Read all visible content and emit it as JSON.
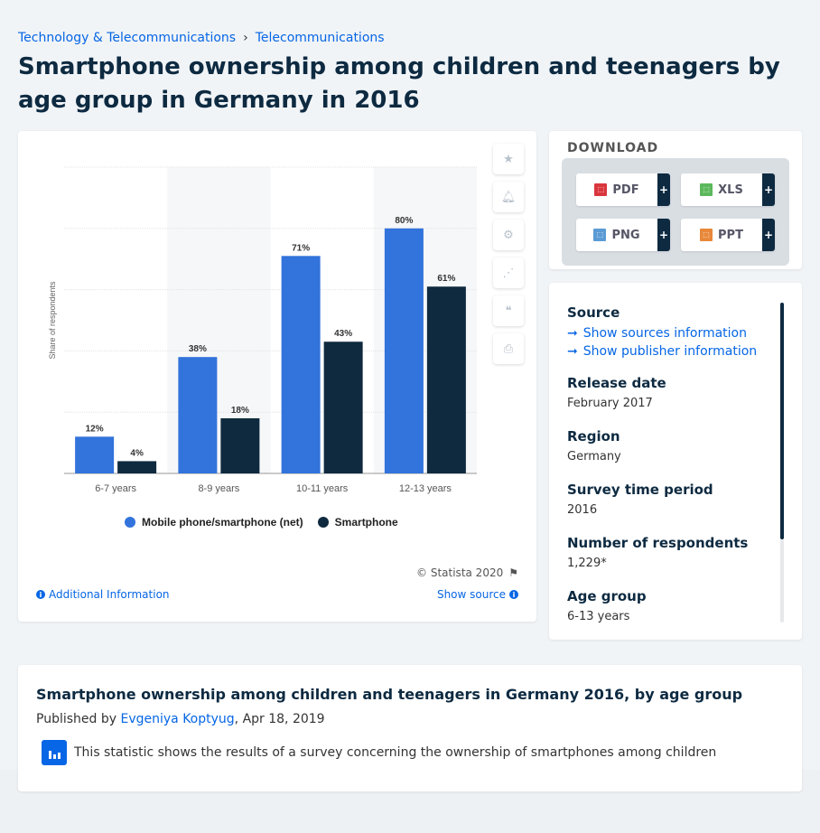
{
  "breadcrumb": {
    "items": [
      "Technology & Telecommunications",
      "Telecommunications"
    ],
    "separator": "›"
  },
  "page_title": "Smartphone ownership among children and teenagers by age group in Germany in 2016",
  "side_icons": [
    "star-icon",
    "bell-icon",
    "gear-icon",
    "share-icon",
    "quote-icon",
    "print-icon"
  ],
  "chart_data": {
    "type": "bar",
    "categories": [
      "6-7 years",
      "8-9 years",
      "10-11 years",
      "12-13 years"
    ],
    "series": [
      {
        "name": "Mobile phone/smartphone (net)",
        "values": [
          12,
          38,
          71,
          80
        ],
        "color": "#3273dc"
      },
      {
        "name": "Smartphone",
        "values": [
          4,
          18,
          43,
          61
        ],
        "color": "#0f2a3f"
      }
    ],
    "value_suffix": "%",
    "ylabel": "Share of respondents",
    "ylim": [
      0,
      100
    ],
    "grid": true,
    "legend": "bottom"
  },
  "chart_footer": {
    "copyright": "© Statista 2020",
    "additional_info": "Additional Information",
    "show_source": "Show source"
  },
  "download": {
    "title": "DOWNLOAD",
    "buttons": [
      {
        "label": "PDF",
        "color": "#d9363e"
      },
      {
        "label": "XLS",
        "color": "#5cb85c"
      },
      {
        "label": "PNG",
        "color": "#5b9bd5"
      },
      {
        "label": "PPT",
        "color": "#e8883a"
      }
    ],
    "plus": "+"
  },
  "meta": {
    "source_label": "Source",
    "show_sources": "Show sources information",
    "show_publisher": "Show publisher information",
    "release_label": "Release date",
    "release_value": "February 2017",
    "region_label": "Region",
    "region_value": "Germany",
    "survey_label": "Survey time period",
    "survey_value": "2016",
    "respondents_label": "Number of respondents",
    "respondents_value": "1,229*",
    "age_label": "Age group",
    "age_value": "6-13 years"
  },
  "description": {
    "title": "Smartphone ownership among children and teenagers in Germany 2016, by age group",
    "published_prefix": "Published by",
    "author": "Evgeniya Koptyug",
    "date": ", Apr 18, 2019",
    "text": "This statistic shows the results of a survey concerning the ownership of smartphones among children"
  }
}
